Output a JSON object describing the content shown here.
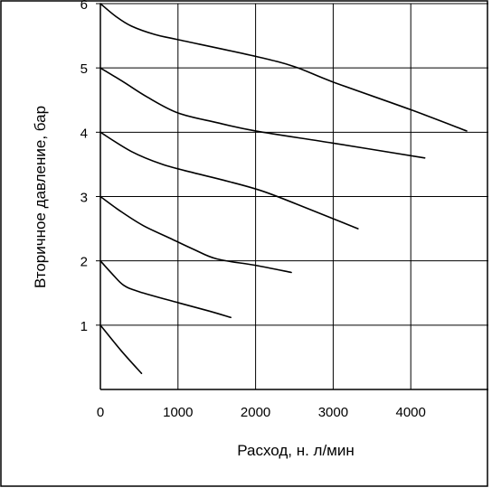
{
  "chart_data": {
    "type": "line",
    "title": "",
    "xlabel": "Расход, н. л/мин",
    "ylabel": "Вторичное давление, бар",
    "xlim": [
      0,
      5000
    ],
    "ylim": [
      0,
      6
    ],
    "x_ticks": [
      "0",
      "1000",
      "2000",
      "3000",
      "4000"
    ],
    "x_tick_values": [
      0,
      1000,
      2000,
      3000,
      4000
    ],
    "y_ticks": [
      "1",
      "2",
      "3",
      "4",
      "5",
      "6"
    ],
    "y_tick_values": [
      1,
      2,
      3,
      4,
      5,
      6
    ],
    "grid": true,
    "legend": "none",
    "line_color": "#000000",
    "series": [
      {
        "values": [
          [
            0,
            1.0
          ],
          [
            270,
            0.6
          ],
          [
            530,
            0.25
          ]
        ]
      },
      {
        "values": [
          [
            0,
            2.0
          ],
          [
            150,
            1.8
          ],
          [
            300,
            1.62
          ],
          [
            500,
            1.52
          ],
          [
            1000,
            1.35
          ],
          [
            1400,
            1.22
          ],
          [
            1680,
            1.12
          ]
        ]
      },
      {
        "values": [
          [
            0,
            3.0
          ],
          [
            250,
            2.78
          ],
          [
            550,
            2.55
          ],
          [
            900,
            2.35
          ],
          [
            1200,
            2.18
          ],
          [
            1500,
            2.03
          ],
          [
            2000,
            1.93
          ],
          [
            2460,
            1.82
          ]
        ]
      },
      {
        "values": [
          [
            0,
            4.0
          ],
          [
            400,
            3.7
          ],
          [
            800,
            3.5
          ],
          [
            1200,
            3.37
          ],
          [
            1600,
            3.25
          ],
          [
            2100,
            3.08
          ],
          [
            2700,
            2.8
          ],
          [
            3320,
            2.5
          ]
        ]
      },
      {
        "values": [
          [
            0,
            5.0
          ],
          [
            300,
            4.78
          ],
          [
            600,
            4.55
          ],
          [
            1000,
            4.3
          ],
          [
            1500,
            4.15
          ],
          [
            2000,
            4.02
          ],
          [
            3000,
            3.83
          ],
          [
            4180,
            3.6
          ]
        ]
      },
      {
        "values": [
          [
            0,
            6.0
          ],
          [
            200,
            5.8
          ],
          [
            400,
            5.65
          ],
          [
            700,
            5.52
          ],
          [
            1000,
            5.44
          ],
          [
            2000,
            5.18
          ],
          [
            2500,
            5.02
          ],
          [
            3000,
            4.78
          ],
          [
            4000,
            4.35
          ],
          [
            4720,
            4.02
          ]
        ]
      }
    ]
  }
}
